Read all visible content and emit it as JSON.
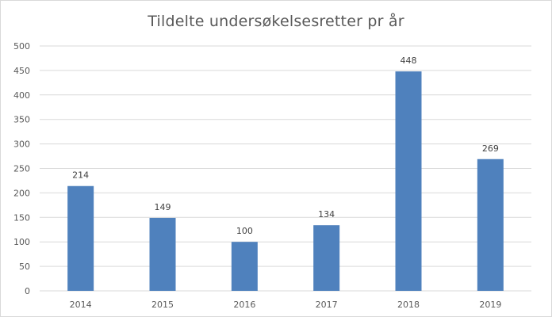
{
  "chart_data": {
    "type": "bar",
    "title": "Tildelte undersøkelsesretter pr år",
    "xlabel": "",
    "ylabel": "",
    "categories": [
      "2014",
      "2015",
      "2016",
      "2017",
      "2018",
      "2019"
    ],
    "values": [
      214,
      149,
      100,
      134,
      448,
      269
    ],
    "ylim": [
      0,
      500
    ],
    "yticks": [
      0,
      50,
      100,
      150,
      200,
      250,
      300,
      350,
      400,
      450,
      500
    ],
    "grid": true,
    "legend": "none",
    "bar_color": "#4f81bd",
    "gridline_color": "#d9d9d9",
    "text_color": "#595959",
    "data_labels": true
  }
}
